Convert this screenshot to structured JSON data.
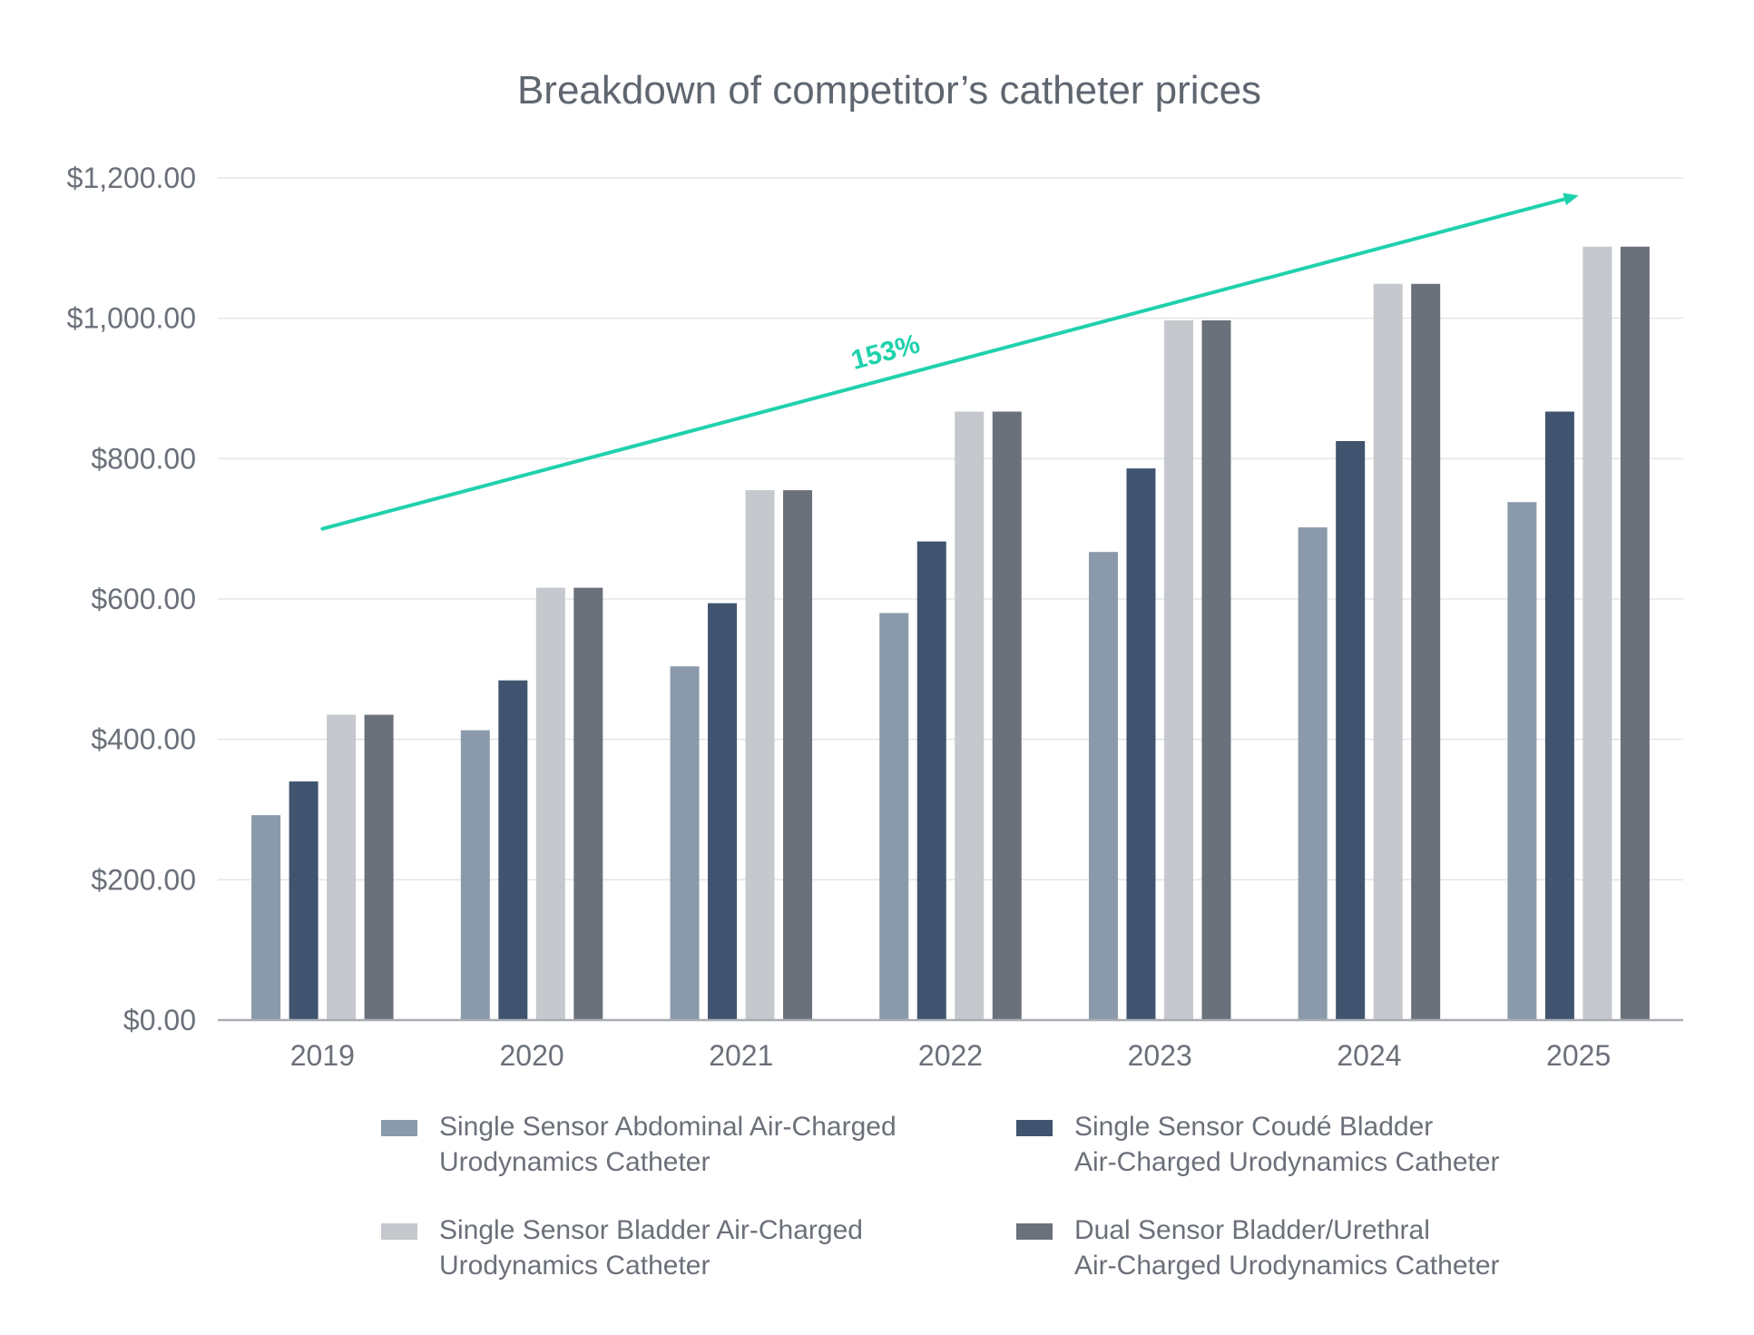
{
  "chart_data": {
    "type": "bar",
    "title": "Breakdown of competitor’s catheter prices",
    "xlabel": "",
    "ylabel": "",
    "categories": [
      "2019",
      "2020",
      "2021",
      "2022",
      "2023",
      "2024",
      "2025"
    ],
    "ylim": [
      0,
      1200
    ],
    "y_ticks": [
      0,
      200,
      400,
      600,
      800,
      1000,
      1200
    ],
    "y_tick_labels": [
      "$0.00",
      "$200.00",
      "$400.00",
      "$600.00",
      "$800.00",
      "$1,000.00",
      "$1,200.00"
    ],
    "grid": true,
    "legend_position": "bottom",
    "series": [
      {
        "name": "Single Sensor Abdominal Air-Charged\nUrodynamics Catheter",
        "color": "#8a9aaa",
        "values": [
          292,
          413,
          504,
          580,
          667,
          702,
          738
        ]
      },
      {
        "name": "Single Sensor Coudé Bladder\nAir-Charged Urodynamics Catheter",
        "color": "#40546f",
        "values": [
          340,
          484,
          594,
          682,
          786,
          825,
          867
        ]
      },
      {
        "name": "Single Sensor Bladder Air-Charged\nUrodynamics Catheter",
        "color": "#c5c8cc",
        "values": [
          435,
          616,
          755,
          867,
          997,
          1049,
          1102
        ]
      },
      {
        "name": "Dual Sensor Bladder/Urethral\nAir-Charged Urodynamics Catheter",
        "color": "#6b717b",
        "values": [
          435,
          616,
          755,
          867,
          997,
          1049,
          1102
        ]
      }
    ],
    "annotation": {
      "text": "153%",
      "color": "#1fd1ac",
      "arrow_from": {
        "x": "2019",
        "y": 700
      },
      "arrow_to": {
        "x": "2025",
        "y": 1175
      }
    }
  }
}
